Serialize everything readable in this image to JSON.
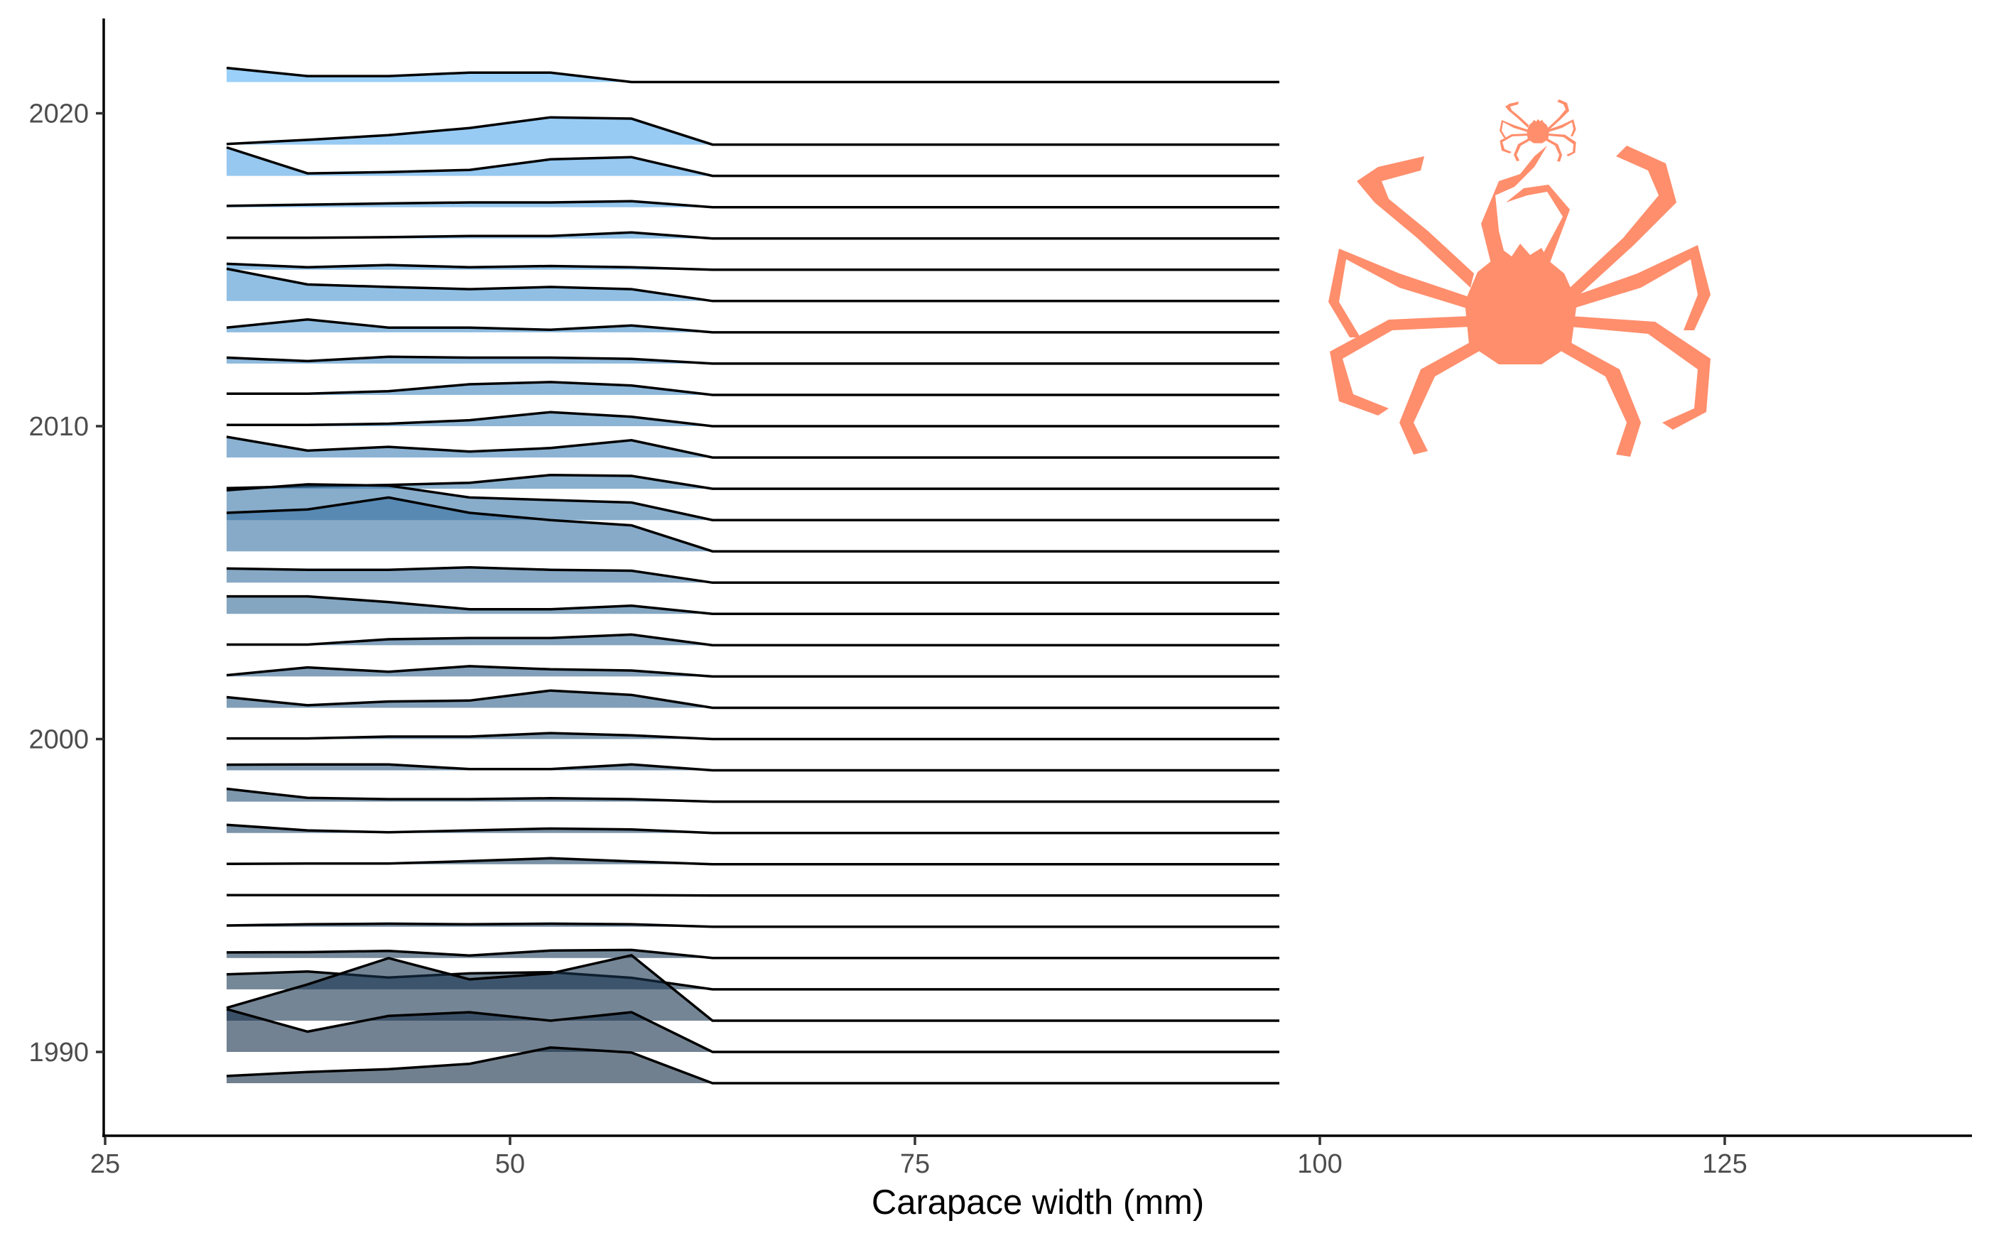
{
  "chart_data": {
    "type": "ridgeline",
    "title": "",
    "xlabel": "Carapace width (mm)",
    "ylabel": "",
    "xlim": [
      25,
      140
    ],
    "ylim": [
      1987.5,
      2023
    ],
    "x_ticks": [
      25,
      50,
      75,
      100,
      125
    ],
    "y_ticks": [
      1990,
      2000,
      2010,
      2020
    ],
    "grid": false,
    "fill_scale": {
      "low": "#132B43",
      "high": "#56B1F7"
    },
    "x": [
      32.5,
      37.5,
      42.5,
      47.5,
      52.5,
      57.5,
      62.5,
      67.5,
      72.5,
      77.5,
      82.5,
      87.5,
      92.5,
      97.5
    ],
    "ridges": [
      {
        "year": 1989,
        "values": [
          0.23,
          0.36,
          0.45,
          0.62,
          1.14,
          0.98,
          0,
          0,
          0,
          0,
          0,
          0,
          0,
          0
        ]
      },
      {
        "year": 1990,
        "values": [
          1.37,
          0.65,
          1.15,
          1.27,
          1.0,
          1.27,
          0,
          0,
          0,
          0,
          0,
          0,
          0,
          0
        ]
      },
      {
        "year": 1991,
        "values": [
          0.41,
          1.16,
          2.0,
          1.32,
          1.51,
          2.09,
          0,
          0,
          0,
          0,
          0,
          0,
          0,
          0
        ]
      },
      {
        "year": 1992,
        "values": [
          0.48,
          0.57,
          0.38,
          0.51,
          0.55,
          0.37,
          0,
          0,
          0,
          0,
          0,
          0,
          0,
          0
        ]
      },
      {
        "year": 1993,
        "values": [
          0.18,
          0.19,
          0.23,
          0.08,
          0.24,
          0.26,
          0,
          0,
          0,
          0,
          0,
          0,
          0,
          0
        ]
      },
      {
        "year": 1994,
        "values": [
          0.04,
          0.08,
          0.1,
          0.08,
          0.1,
          0.08,
          0,
          0,
          0,
          0,
          0,
          0,
          0,
          0
        ]
      },
      {
        "year": 1995,
        "values": [
          0.01,
          0.01,
          0.01,
          0.01,
          0.01,
          0.01,
          0,
          0,
          0,
          0,
          0,
          0,
          0,
          0
        ]
      },
      {
        "year": 1996,
        "values": [
          0.01,
          0.02,
          0.02,
          0.1,
          0.19,
          0.09,
          0,
          0,
          0,
          0,
          0,
          0,
          0,
          0
        ]
      },
      {
        "year": 1997,
        "values": [
          0.26,
          0.08,
          0.02,
          0.08,
          0.14,
          0.11,
          0,
          0,
          0,
          0,
          0,
          0,
          0,
          0
        ]
      },
      {
        "year": 1998,
        "values": [
          0.41,
          0.12,
          0.08,
          0.08,
          0.11,
          0.08,
          0,
          0,
          0,
          0,
          0,
          0,
          0,
          0
        ]
      },
      {
        "year": 1999,
        "values": [
          0.18,
          0.19,
          0.19,
          0.04,
          0.04,
          0.19,
          0,
          0,
          0,
          0,
          0,
          0,
          0,
          0
        ]
      },
      {
        "year": 2000,
        "values": [
          0.02,
          0.02,
          0.08,
          0.08,
          0.19,
          0.12,
          0,
          0,
          0,
          0,
          0,
          0,
          0,
          0
        ]
      },
      {
        "year": 2001,
        "values": [
          0.34,
          0.08,
          0.2,
          0.23,
          0.55,
          0.41,
          0,
          0,
          0,
          0,
          0,
          0,
          0,
          0
        ]
      },
      {
        "year": 2002,
        "values": [
          0.04,
          0.29,
          0.15,
          0.33,
          0.23,
          0.19,
          0,
          0,
          0,
          0,
          0,
          0,
          0,
          0
        ]
      },
      {
        "year": 2003,
        "values": [
          0.02,
          0.02,
          0.19,
          0.23,
          0.23,
          0.34,
          0,
          0,
          0,
          0,
          0,
          0,
          0,
          0
        ]
      },
      {
        "year": 2004,
        "values": [
          0.56,
          0.56,
          0.38,
          0.15,
          0.15,
          0.26,
          0,
          0,
          0,
          0,
          0,
          0,
          0,
          0
        ]
      },
      {
        "year": 2005,
        "values": [
          0.45,
          0.41,
          0.41,
          0.49,
          0.41,
          0.38,
          0,
          0,
          0,
          0,
          0,
          0,
          0,
          0
        ]
      },
      {
        "year": 2006,
        "values": [
          1.23,
          1.34,
          1.72,
          1.23,
          1.0,
          0.83,
          0,
          0,
          0,
          0,
          0,
          0,
          0,
          0
        ]
      },
      {
        "year": 2007,
        "values": [
          0.95,
          1.14,
          1.1,
          0.72,
          0.64,
          0.56,
          0,
          0,
          0,
          0,
          0,
          0,
          0,
          0
        ]
      },
      {
        "year": 2008,
        "values": [
          0.02,
          0.08,
          0.12,
          0.19,
          0.44,
          0.41,
          0,
          0,
          0,
          0,
          0,
          0,
          0,
          0
        ]
      },
      {
        "year": 2009,
        "values": [
          0.66,
          0.22,
          0.34,
          0.19,
          0.3,
          0.55,
          0,
          0,
          0,
          0,
          0,
          0,
          0,
          0
        ]
      },
      {
        "year": 2010,
        "values": [
          0.04,
          0.04,
          0.08,
          0.19,
          0.45,
          0.3,
          0,
          0,
          0,
          0,
          0,
          0,
          0,
          0
        ]
      },
      {
        "year": 2011,
        "values": [
          0.04,
          0.04,
          0.12,
          0.34,
          0.41,
          0.3,
          0,
          0,
          0,
          0,
          0,
          0,
          0,
          0
        ]
      },
      {
        "year": 2012,
        "values": [
          0.19,
          0.08,
          0.22,
          0.19,
          0.19,
          0.15,
          0,
          0,
          0,
          0,
          0,
          0,
          0,
          0
        ]
      },
      {
        "year": 2013,
        "values": [
          0.15,
          0.41,
          0.15,
          0.15,
          0.08,
          0.22,
          0,
          0,
          0,
          0,
          0,
          0,
          0,
          0
        ]
      },
      {
        "year": 2014,
        "values": [
          1.03,
          0.53,
          0.45,
          0.38,
          0.45,
          0.38,
          0,
          0,
          0,
          0,
          0,
          0,
          0,
          0
        ]
      },
      {
        "year": 2015,
        "values": [
          0.19,
          0.08,
          0.15,
          0.08,
          0.12,
          0.08,
          0,
          0,
          0,
          0,
          0,
          0,
          0,
          0
        ]
      },
      {
        "year": 2016,
        "values": [
          0.02,
          0.02,
          0.04,
          0.08,
          0.08,
          0.19,
          0,
          0,
          0,
          0,
          0,
          0,
          0,
          0
        ]
      },
      {
        "year": 2017,
        "values": [
          0.04,
          0.08,
          0.12,
          0.15,
          0.15,
          0.19,
          0,
          0,
          0,
          0,
          0,
          0,
          0,
          0
        ]
      },
      {
        "year": 2018,
        "values": [
          0.91,
          0.08,
          0.12,
          0.19,
          0.53,
          0.6,
          0,
          0,
          0,
          0,
          0,
          0,
          0,
          0
        ]
      },
      {
        "year": 2019,
        "values": [
          0.02,
          0.15,
          0.3,
          0.53,
          0.87,
          0.83,
          0,
          0,
          0,
          0,
          0,
          0,
          0,
          0
        ]
      },
      {
        "year": 2021,
        "values": [
          0.45,
          0.19,
          0.19,
          0.3,
          0.3,
          0,
          0,
          0,
          0,
          0,
          0,
          0,
          0,
          0
        ]
      }
    ]
  },
  "decoration": {
    "icon": "crab-silhouette-icon",
    "color": "#FF8E6C"
  }
}
